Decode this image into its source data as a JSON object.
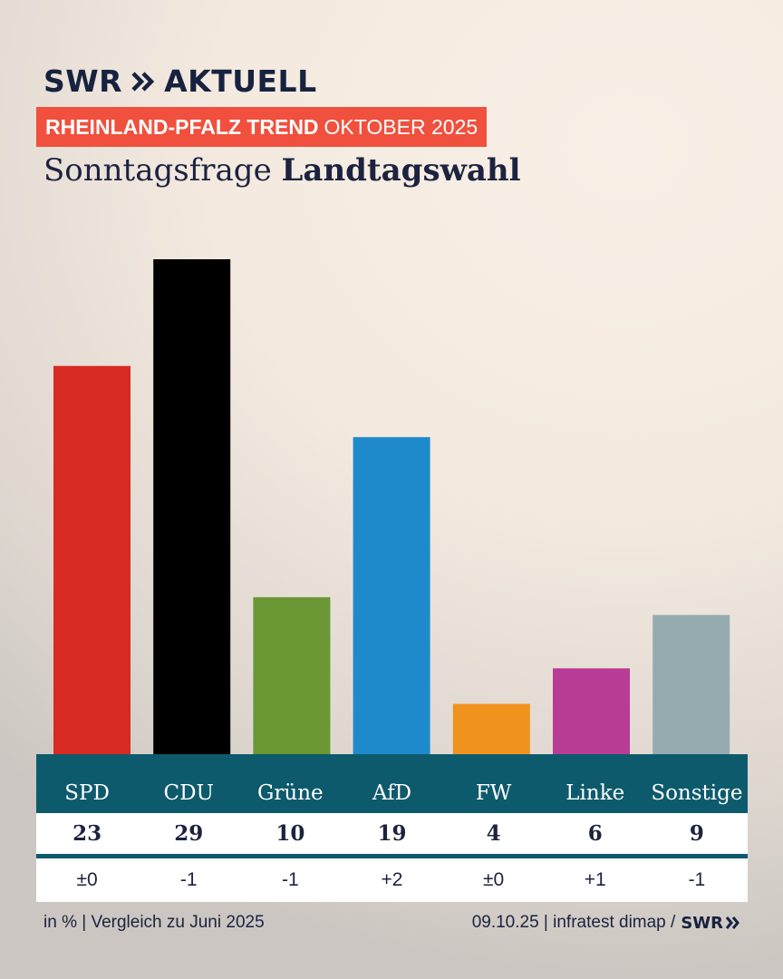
{
  "brand": {
    "swr": "SWR",
    "aktuell": "AKTUELL"
  },
  "header": {
    "tag_bold": "RHEINLAND-PFALZ TREND",
    "tag_rest": "OKTOBER 2025",
    "title_regular": "Sonntagsfrage",
    "title_bold": "Landtagswahl"
  },
  "chart_data": {
    "type": "bar",
    "title": "Sonntagsfrage Landtagswahl",
    "unit": "%",
    "categories": [
      "SPD",
      "CDU",
      "Grüne",
      "AfD",
      "FW",
      "Linke",
      "Sonstige"
    ],
    "values": [
      23,
      29,
      10,
      19,
      4,
      6,
      9
    ],
    "changes": [
      "±0",
      "-1",
      "-1",
      "+2",
      "±0",
      "+1",
      "-1"
    ],
    "colors": [
      "#d72a22",
      "#000000",
      "#6a9734",
      "#1e8acc",
      "#f0921e",
      "#b83b96",
      "#96abb0"
    ],
    "ylim": [
      0,
      29
    ]
  },
  "footer": {
    "left": "in % | Vergleich zu Juni 2025",
    "right": "09.10.25 | infratest dimap /",
    "logo": "SWR"
  }
}
